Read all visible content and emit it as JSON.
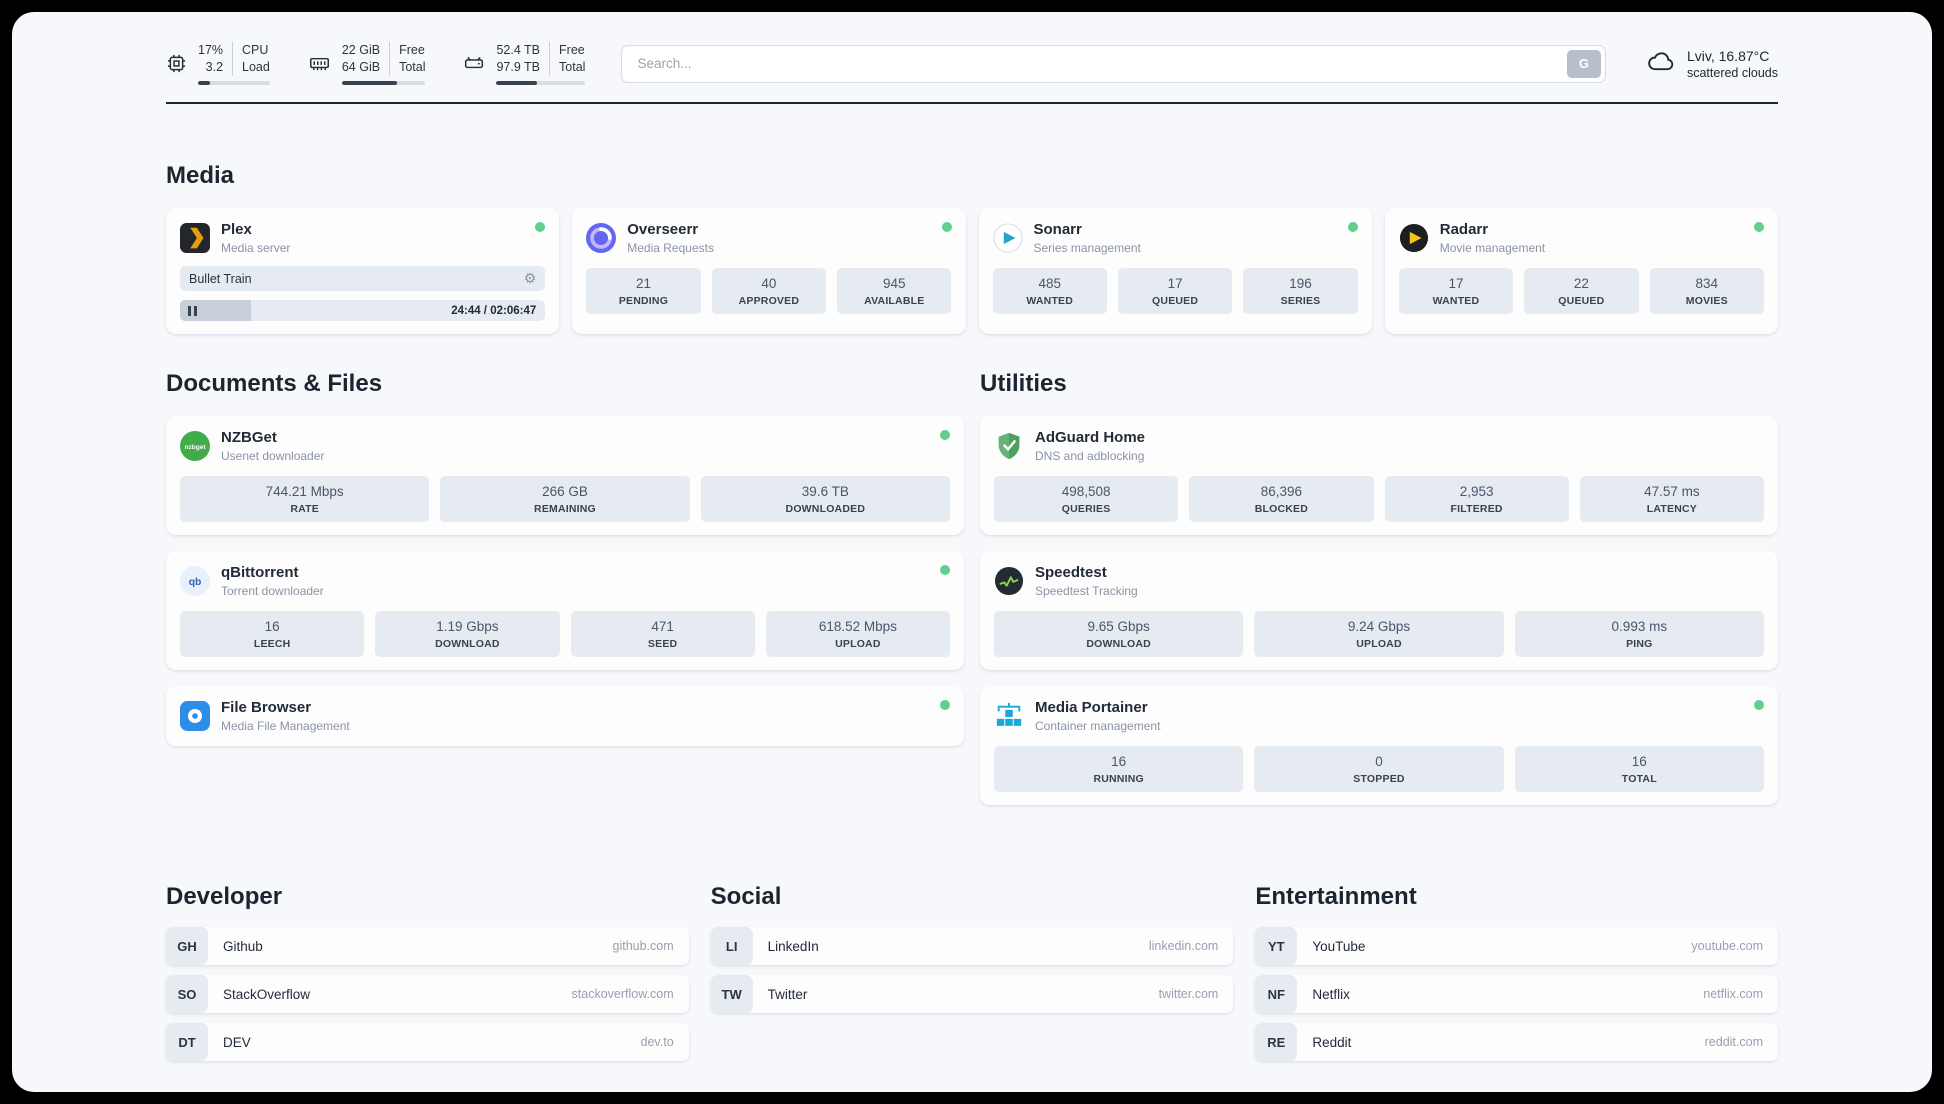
{
  "topbar": {
    "cpu": {
      "percent": "17%",
      "load": "3.2",
      "label_top": "CPU",
      "label_bottom": "Load",
      "bar_percent": 17
    },
    "ram": {
      "free_value": "22 GiB",
      "total_value": "64 GiB",
      "label_top": "Free",
      "label_bottom": "Total",
      "bar_percent": 66
    },
    "disk": {
      "free_value": "52.4 TB",
      "total_value": "97.9 TB",
      "label_top": "Free",
      "label_bottom": "Total",
      "bar_percent": 46
    },
    "search": {
      "placeholder": "Search...",
      "engine_button": "G"
    },
    "weather": {
      "location": "Lviv, 16.87°C",
      "condition": "scattered clouds"
    }
  },
  "media": {
    "title": "Media",
    "plex": {
      "name": "Plex",
      "subtitle": "Media server",
      "status": "online",
      "now_playing": "Bullet Train",
      "progress_percent": 19.5,
      "time": "24:44 / 02:06:47"
    },
    "overseerr": {
      "name": "Overseerr",
      "subtitle": "Media Requests",
      "status": "online",
      "stats": [
        {
          "value": "21",
          "label": "PENDING"
        },
        {
          "value": "40",
          "label": "APPROVED"
        },
        {
          "value": "945",
          "label": "AVAILABLE"
        }
      ]
    },
    "sonarr": {
      "name": "Sonarr",
      "subtitle": "Series management",
      "status": "online",
      "stats": [
        {
          "value": "485",
          "label": "WANTED"
        },
        {
          "value": "17",
          "label": "QUEUED"
        },
        {
          "value": "196",
          "label": "SERIES"
        }
      ]
    },
    "radarr": {
      "name": "Radarr",
      "subtitle": "Movie management",
      "status": "online",
      "stats": [
        {
          "value": "17",
          "label": "WANTED"
        },
        {
          "value": "22",
          "label": "QUEUED"
        },
        {
          "value": "834",
          "label": "MOVIES"
        }
      ]
    }
  },
  "documents": {
    "title": "Documents & Files",
    "nzbget": {
      "name": "NZBGet",
      "subtitle": "Usenet downloader",
      "status": "online",
      "stats": [
        {
          "value": "744.21 Mbps",
          "label": "RATE"
        },
        {
          "value": "266 GB",
          "label": "REMAINING"
        },
        {
          "value": "39.6 TB",
          "label": "DOWNLOADED"
        }
      ]
    },
    "qbittorrent": {
      "name": "qBittorrent",
      "subtitle": "Torrent downloader",
      "status": "online",
      "stats": [
        {
          "value": "16",
          "label": "LEECH"
        },
        {
          "value": "1.19 Gbps",
          "label": "DOWNLOAD"
        },
        {
          "value": "471",
          "label": "SEED"
        },
        {
          "value": "618.52 Mbps",
          "label": "UPLOAD"
        }
      ]
    },
    "filebrowser": {
      "name": "File Browser",
      "subtitle": "Media File Management",
      "status": "online"
    }
  },
  "utilities": {
    "title": "Utilities",
    "adguard": {
      "name": "AdGuard Home",
      "subtitle": "DNS and adblocking",
      "stats": [
        {
          "value": "498,508",
          "label": "QUERIES"
        },
        {
          "value": "86,396",
          "label": "BLOCKED"
        },
        {
          "value": "2,953",
          "label": "FILTERED"
        },
        {
          "value": "47.57 ms",
          "label": "LATENCY"
        }
      ]
    },
    "speedtest": {
      "name": "Speedtest",
      "subtitle": "Speedtest Tracking",
      "stats": [
        {
          "value": "9.65 Gbps",
          "label": "DOWNLOAD"
        },
        {
          "value": "9.24 Gbps",
          "label": "UPLOAD"
        },
        {
          "value": "0.993 ms",
          "label": "PING"
        }
      ]
    },
    "portainer": {
      "name": "Media Portainer",
      "subtitle": "Container management",
      "status": "online",
      "stats": [
        {
          "value": "16",
          "label": "RUNNING"
        },
        {
          "value": "0",
          "label": "STOPPED"
        },
        {
          "value": "16",
          "label": "TOTAL"
        }
      ]
    }
  },
  "links": {
    "developer": {
      "title": "Developer",
      "items": [
        {
          "abbr": "GH",
          "name": "Github",
          "url": "github.com"
        },
        {
          "abbr": "SO",
          "name": "StackOverflow",
          "url": "stackoverflow.com"
        },
        {
          "abbr": "DT",
          "name": "DEV",
          "url": "dev.to"
        }
      ]
    },
    "social": {
      "title": "Social",
      "items": [
        {
          "abbr": "LI",
          "name": "LinkedIn",
          "url": "linkedin.com"
        },
        {
          "abbr": "TW",
          "name": "Twitter",
          "url": "twitter.com"
        }
      ]
    },
    "entertainment": {
      "title": "Entertainment",
      "items": [
        {
          "abbr": "YT",
          "name": "YouTube",
          "url": "youtube.com"
        },
        {
          "abbr": "NF",
          "name": "Netflix",
          "url": "netflix.com"
        },
        {
          "abbr": "RE",
          "name": "Reddit",
          "url": "reddit.com"
        }
      ]
    }
  },
  "colors": {
    "status_online": "#62cf8e",
    "plex_amber": "#e5a00d",
    "sonarr_teal": "#29a5c4",
    "radarr_yellow": "#f9c51d",
    "nzbget_green": "#42ab4a",
    "qbittorrent_blue": "#3064b0",
    "adguard_green": "#67b279",
    "speedtest_green": "#8bd84c",
    "filebrowser_blue": "#2e8ceb",
    "portainer_blue": "#1aa8d6"
  }
}
